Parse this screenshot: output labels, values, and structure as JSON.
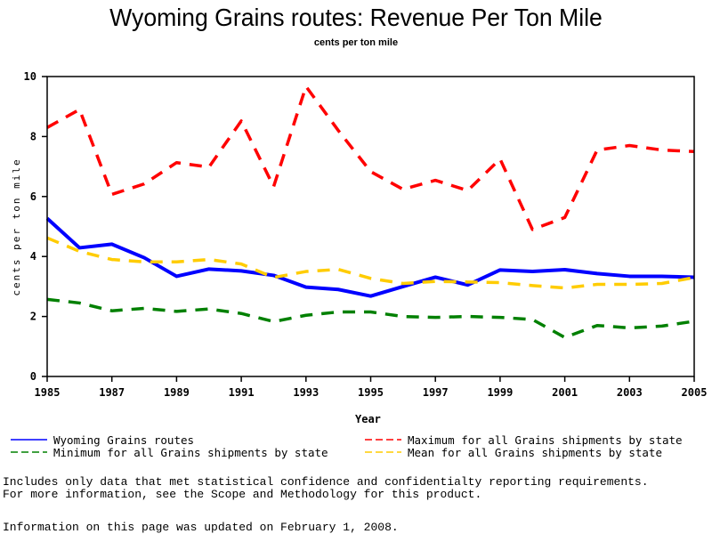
{
  "chart_data": {
    "type": "line",
    "title": "Wyoming Grains routes: Revenue Per Ton Mile",
    "subtitle": "cents per ton mile",
    "xlabel": "Year",
    "ylabel": "cents per ton mile",
    "xlim": [
      1985,
      2005
    ],
    "ylim": [
      0,
      10
    ],
    "grid": false,
    "x": [
      1985,
      1986,
      1987,
      1988,
      1989,
      1990,
      1991,
      1992,
      1993,
      1994,
      1995,
      1996,
      1997,
      1998,
      1999,
      2000,
      2001,
      2002,
      2003,
      2004,
      2005
    ],
    "xticks": [
      "1985",
      "1987",
      "1989",
      "1991",
      "1993",
      "1995",
      "1997",
      "1999",
      "2001",
      "2003",
      "2005"
    ],
    "yticks": [
      "0",
      "2",
      "4",
      "6",
      "8",
      "10"
    ],
    "legend_position": "bottom",
    "series": [
      {
        "name": "Wyoming Grains routes",
        "color": "#0000ff",
        "style": "solid",
        "values": [
          5.27,
          4.29,
          4.41,
          3.96,
          3.34,
          3.58,
          3.52,
          3.37,
          2.98,
          2.9,
          2.68,
          3.0,
          3.31,
          3.05,
          3.55,
          3.5,
          3.56,
          3.43,
          3.34,
          3.34,
          3.31
        ]
      },
      {
        "name": "Maximum for all Grains shipments by state",
        "color": "#ff0000",
        "style": "dashed",
        "values": [
          8.3,
          8.9,
          6.07,
          6.42,
          7.13,
          6.98,
          8.52,
          6.33,
          9.67,
          8.2,
          6.83,
          6.24,
          6.54,
          6.2,
          7.25,
          4.9,
          5.3,
          7.55,
          7.7,
          7.55,
          7.5
        ]
      },
      {
        "name": "Minimum for all Grains shipments by state",
        "color": "#008000",
        "style": "dashed",
        "values": [
          2.57,
          2.45,
          2.19,
          2.27,
          2.17,
          2.25,
          2.1,
          1.83,
          2.04,
          2.15,
          2.15,
          2.0,
          1.97,
          2.0,
          1.97,
          1.9,
          1.3,
          1.7,
          1.62,
          1.68,
          1.84
        ]
      },
      {
        "name": "Mean for all Grains shipments by state",
        "color": "#ffcc00",
        "style": "dashed",
        "values": [
          4.62,
          4.17,
          3.9,
          3.82,
          3.82,
          3.9,
          3.75,
          3.3,
          3.5,
          3.57,
          3.27,
          3.1,
          3.17,
          3.15,
          3.13,
          3.03,
          2.95,
          3.07,
          3.07,
          3.1,
          3.3
        ]
      }
    ]
  },
  "legend": {
    "items": [
      {
        "label": "Wyoming Grains routes",
        "series_index": 0
      },
      {
        "label": "Maximum for all Grains shipments by state",
        "series_index": 1
      },
      {
        "label": "Minimum for all Grains shipments by state",
        "series_index": 2
      },
      {
        "label": "Mean for all Grains shipments by state",
        "series_index": 3
      }
    ]
  },
  "footnotes": {
    "line1": "Includes only data that met statistical confidence and confidentialty reporting requirements.",
    "line2": "For more information, see the Scope and Methodology for this product.",
    "updated": "Information on this page was updated on February 1, 2008."
  }
}
